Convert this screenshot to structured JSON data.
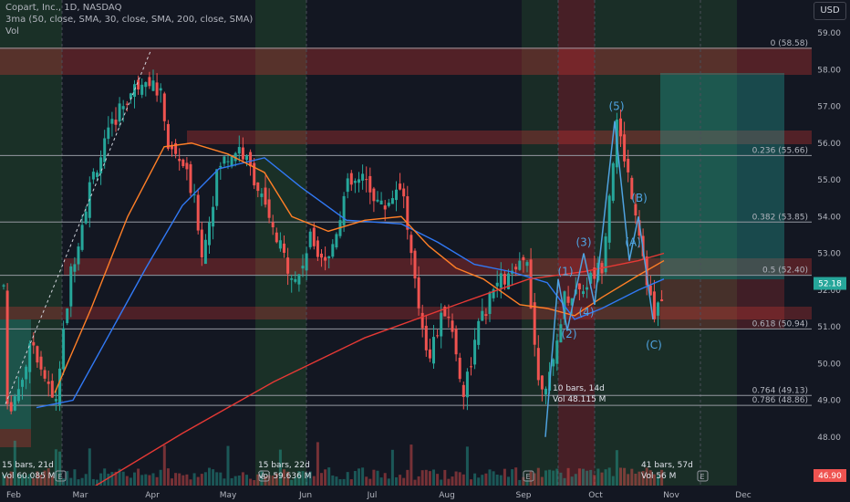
{
  "header": {
    "symbol_line": "Copart, Inc., 1D, NASDAQ",
    "indicator_line": "3ma (50, close, SMA, 30, close, SMA, 200, close, SMA)",
    "vol_label": "Vol"
  },
  "currency_button": "USD",
  "colors": {
    "background": "#131722",
    "up_candle": "#26a69a",
    "down_candle": "#ef5350",
    "sma50": "#3179f5",
    "sma30": "#ff7f27",
    "sma200": "#e53935",
    "wave": "#4fa3e0"
  },
  "price_axis": {
    "ticks": [
      "59.00",
      "58.00",
      "57.00",
      "56.00",
      "55.00",
      "54.00",
      "53.00",
      "52.00",
      "51.00",
      "50.00",
      "49.00",
      "48.00",
      "47.00"
    ],
    "current_price": "52.18",
    "bottom_value": "46.90"
  },
  "time_axis": {
    "labels": [
      "Feb",
      "Mar",
      "Apr",
      "May",
      "Jun",
      "Jul",
      "Aug",
      "Sep",
      "Oct",
      "Nov",
      "Dec"
    ]
  },
  "fibonacci": [
    {
      "label": "0 (58.58)",
      "price": 58.58
    },
    {
      "label": "0.236 (55.66)",
      "price": 55.66
    },
    {
      "label": "0.382 (53.85)",
      "price": 53.85
    },
    {
      "label": "0.5 (52.40)",
      "price": 52.4
    },
    {
      "label": "0.618 (50.94)",
      "price": 50.94
    },
    {
      "label": "0.764 (49.13)",
      "price": 49.13
    },
    {
      "label": "0.786 (48.86)",
      "price": 48.86
    }
  ],
  "wave_labels": [
    "(1)",
    "(2)",
    "(3)",
    "(4)",
    "(5)",
    "(A)",
    "(B)",
    "(C)"
  ],
  "measurements": [
    {
      "bars": "15 bars, 21d",
      "vol": "Vol 60.085 M"
    },
    {
      "bars": "15 bars, 22d",
      "vol": "Vol 59.636 M"
    },
    {
      "bars": "10 bars, 14d",
      "vol": "Vol 48.115 M"
    },
    {
      "bars": "41 bars, 57d",
      "vol": "Vol ",
      "vol_tail": "56 M"
    }
  ],
  "event_markers": [
    "E",
    "E",
    "E",
    "E"
  ]
}
